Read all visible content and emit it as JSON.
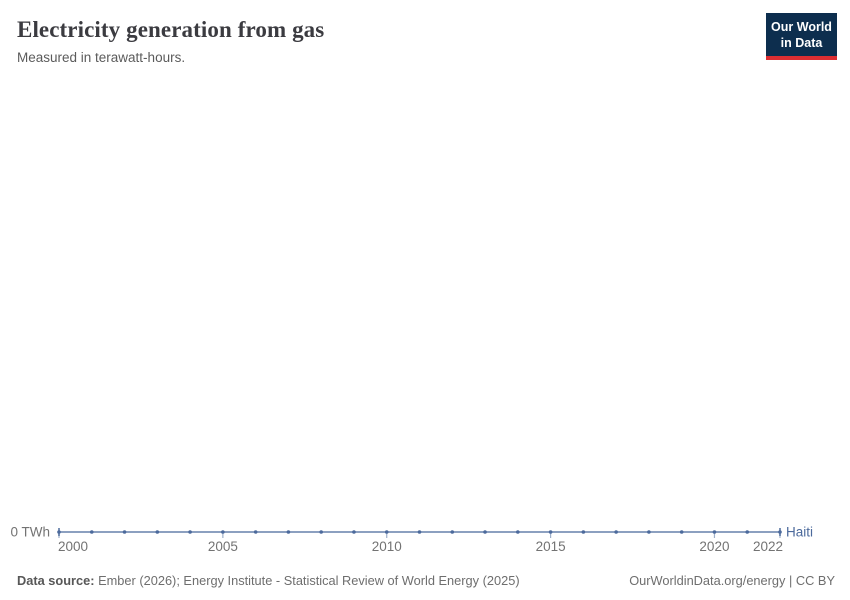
{
  "header": {
    "title": "Electricity generation from gas",
    "subtitle": "Measured in terawatt-hours.",
    "logo": {
      "line1": "Our World",
      "line2": "in Data"
    }
  },
  "colors": {
    "series_blue": "#4C6A9C",
    "logo_navy": "#0D2E4E",
    "logo_red": "#DC2E32",
    "axis_text": "#737373"
  },
  "chart_data": {
    "type": "line",
    "title": "Electricity generation from gas",
    "subtitle": "Measured in terawatt-hours.",
    "unit": "TWh",
    "grid": false,
    "legend": "end-of-line-label",
    "xlim": [
      2000,
      2022
    ],
    "x_ticks": [
      2000,
      2005,
      2010,
      2015,
      2020,
      2022
    ],
    "y_ticks": [
      0
    ],
    "y_axis_label": "0 TWh",
    "series": [
      {
        "name": "Haiti",
        "color": "#4C6A9C",
        "x": [
          2000,
          2001,
          2002,
          2003,
          2004,
          2005,
          2006,
          2007,
          2008,
          2009,
          2010,
          2011,
          2012,
          2013,
          2014,
          2015,
          2016,
          2017,
          2018,
          2019,
          2020,
          2021,
          2022
        ],
        "values": [
          0,
          0,
          0,
          0,
          0,
          0,
          0,
          0,
          0,
          0,
          0,
          0,
          0,
          0,
          0,
          0,
          0,
          0,
          0,
          0,
          0,
          0,
          0
        ]
      }
    ]
  },
  "footer": {
    "datasource_label": "Data source:",
    "datasource_text": " Ember (2026); Energy Institute - Statistical Review of World Energy (2025)",
    "link": "OurWorldinData.org/energy | CC BY"
  }
}
